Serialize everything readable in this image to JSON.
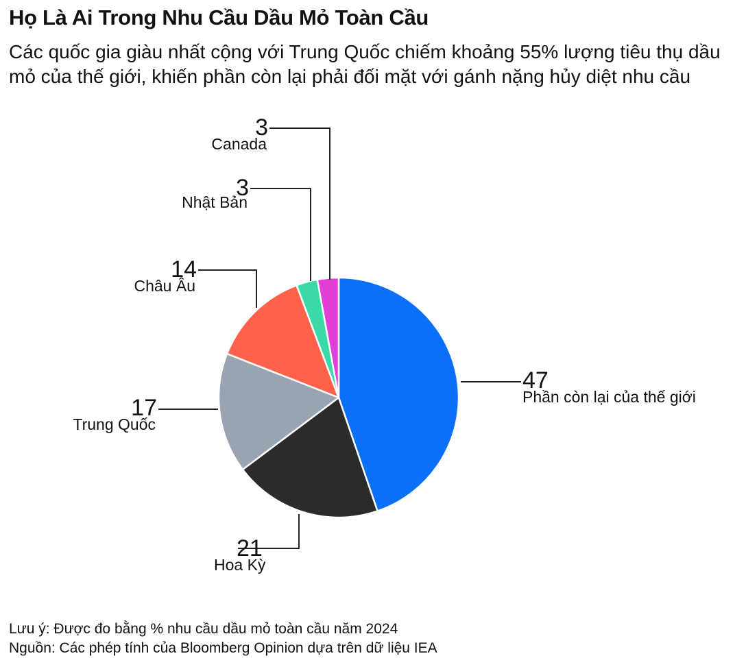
{
  "title": "Họ Là Ai Trong Nhu Cầu Dầu Mỏ Toàn Cầu",
  "subtitle": "Các quốc gia giàu nhất cộng với Trung Quốc chiếm khoảng 55% lượng tiêu thụ dầu mỏ của thế giới, khiến phần còn lại phải đối mặt với gánh nặng hủy diệt nhu cầu",
  "chart_data": {
    "type": "pie",
    "unit": "%",
    "slices": [
      {
        "label": "Phần còn lại của thế giới",
        "value": 47,
        "color": "#0b6ff7"
      },
      {
        "label": "Hoa Kỳ",
        "value": 21,
        "color": "#2b2b2b"
      },
      {
        "label": "Trung Quốc",
        "value": 17,
        "color": "#99a3b2"
      },
      {
        "label": "Châu Âu",
        "value": 14,
        "color": "#ff614a"
      },
      {
        "label": "Nhật Bản",
        "value": 3,
        "color": "#3bd9a9"
      },
      {
        "label": "Canada",
        "value": 3,
        "color": "#e33ed6"
      }
    ]
  },
  "notes": {
    "note": "Lưu ý: Được đo bằng % nhu cầu dầu mỏ toàn cầu năm 2024",
    "source": "Nguồn: Các phép tính của Bloomberg Opinion dựa trên dữ liệu IEA"
  }
}
